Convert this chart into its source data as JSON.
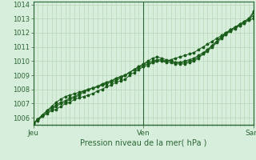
{
  "title": "",
  "xlabel": "Pression niveau de la mer( hPa )",
  "ylabel": "",
  "bg_color": "#d8eedd",
  "plot_bg_color": "#d8eedd",
  "grid_color": "#b8d8b8",
  "line_color": "#1a5c1a",
  "tick_label_color": "#2a6632",
  "axis_color": "#2a6632",
  "xlabel_color": "#2a6632",
  "ylim": [
    1005.5,
    1014.2
  ],
  "yticks": [
    1006,
    1007,
    1008,
    1009,
    1010,
    1011,
    1012,
    1013,
    1014
  ],
  "xtick_labels": [
    "Jeu",
    "Ven",
    "Sam"
  ],
  "xtick_positions": [
    0.0,
    0.5,
    1.0
  ],
  "vline_positions": [
    0.0,
    0.5,
    1.0
  ],
  "n_points": 49,
  "series": [
    [
      1005.6,
      1005.8,
      1006.1,
      1006.3,
      1006.5,
      1006.6,
      1006.8,
      1007.0,
      1007.1,
      1007.3,
      1007.4,
      1007.5,
      1007.6,
      1007.7,
      1007.9,
      1008.0,
      1008.2,
      1008.3,
      1008.5,
      1008.6,
      1008.7,
      1009.0,
      1009.2,
      1009.4,
      1009.6,
      1009.7,
      1009.9,
      1010.0,
      1010.0,
      1010.0,
      1010.1,
      1010.2,
      1010.3,
      1010.4,
      1010.5,
      1010.6,
      1010.8,
      1011.0,
      1011.2,
      1011.4,
      1011.6,
      1011.8,
      1012.0,
      1012.2,
      1012.4,
      1012.6,
      1012.8,
      1013.0,
      1013.2
    ],
    [
      1005.6,
      1005.9,
      1006.2,
      1006.5,
      1006.7,
      1006.9,
      1007.1,
      1007.2,
      1007.4,
      1007.5,
      1007.7,
      1007.9,
      1008.0,
      1008.1,
      1008.2,
      1008.3,
      1008.5,
      1008.6,
      1008.7,
      1008.9,
      1009.0,
      1009.2,
      1009.4,
      1009.6,
      1009.8,
      1009.9,
      1010.0,
      1010.1,
      1010.1,
      1010.0,
      1010.0,
      1009.9,
      1009.9,
      1009.9,
      1010.0,
      1010.1,
      1010.3,
      1010.5,
      1010.7,
      1011.0,
      1011.3,
      1011.6,
      1011.9,
      1012.1,
      1012.3,
      1012.5,
      1012.7,
      1012.9,
      1013.4
    ],
    [
      1005.6,
      1005.9,
      1006.1,
      1006.4,
      1006.6,
      1006.8,
      1007.0,
      1007.1,
      1007.3,
      1007.4,
      1007.6,
      1007.8,
      1008.0,
      1008.1,
      1008.2,
      1008.3,
      1008.4,
      1008.5,
      1008.6,
      1008.8,
      1009.0,
      1009.2,
      1009.4,
      1009.5,
      1009.7,
      1009.8,
      1009.9,
      1010.0,
      1010.0,
      1009.9,
      1009.9,
      1009.8,
      1009.8,
      1009.8,
      1009.9,
      1010.0,
      1010.2,
      1010.5,
      1010.8,
      1011.1,
      1011.4,
      1011.7,
      1012.0,
      1012.2,
      1012.4,
      1012.5,
      1012.7,
      1012.9,
      1013.0
    ],
    [
      1005.6,
      1005.9,
      1006.2,
      1006.5,
      1006.8,
      1007.1,
      1007.3,
      1007.5,
      1007.6,
      1007.7,
      1007.8,
      1007.9,
      1008.0,
      1008.1,
      1008.2,
      1008.4,
      1008.5,
      1008.6,
      1008.8,
      1008.9,
      1009.0,
      1009.2,
      1009.4,
      1009.6,
      1009.8,
      1010.0,
      1010.2,
      1010.3,
      1010.2,
      1010.1,
      1010.0,
      1009.9,
      1009.9,
      1010.0,
      1010.1,
      1010.2,
      1010.4,
      1010.6,
      1010.8,
      1011.1,
      1011.4,
      1011.7,
      1011.9,
      1012.2,
      1012.4,
      1012.6,
      1012.8,
      1013.0,
      1013.5
    ]
  ]
}
